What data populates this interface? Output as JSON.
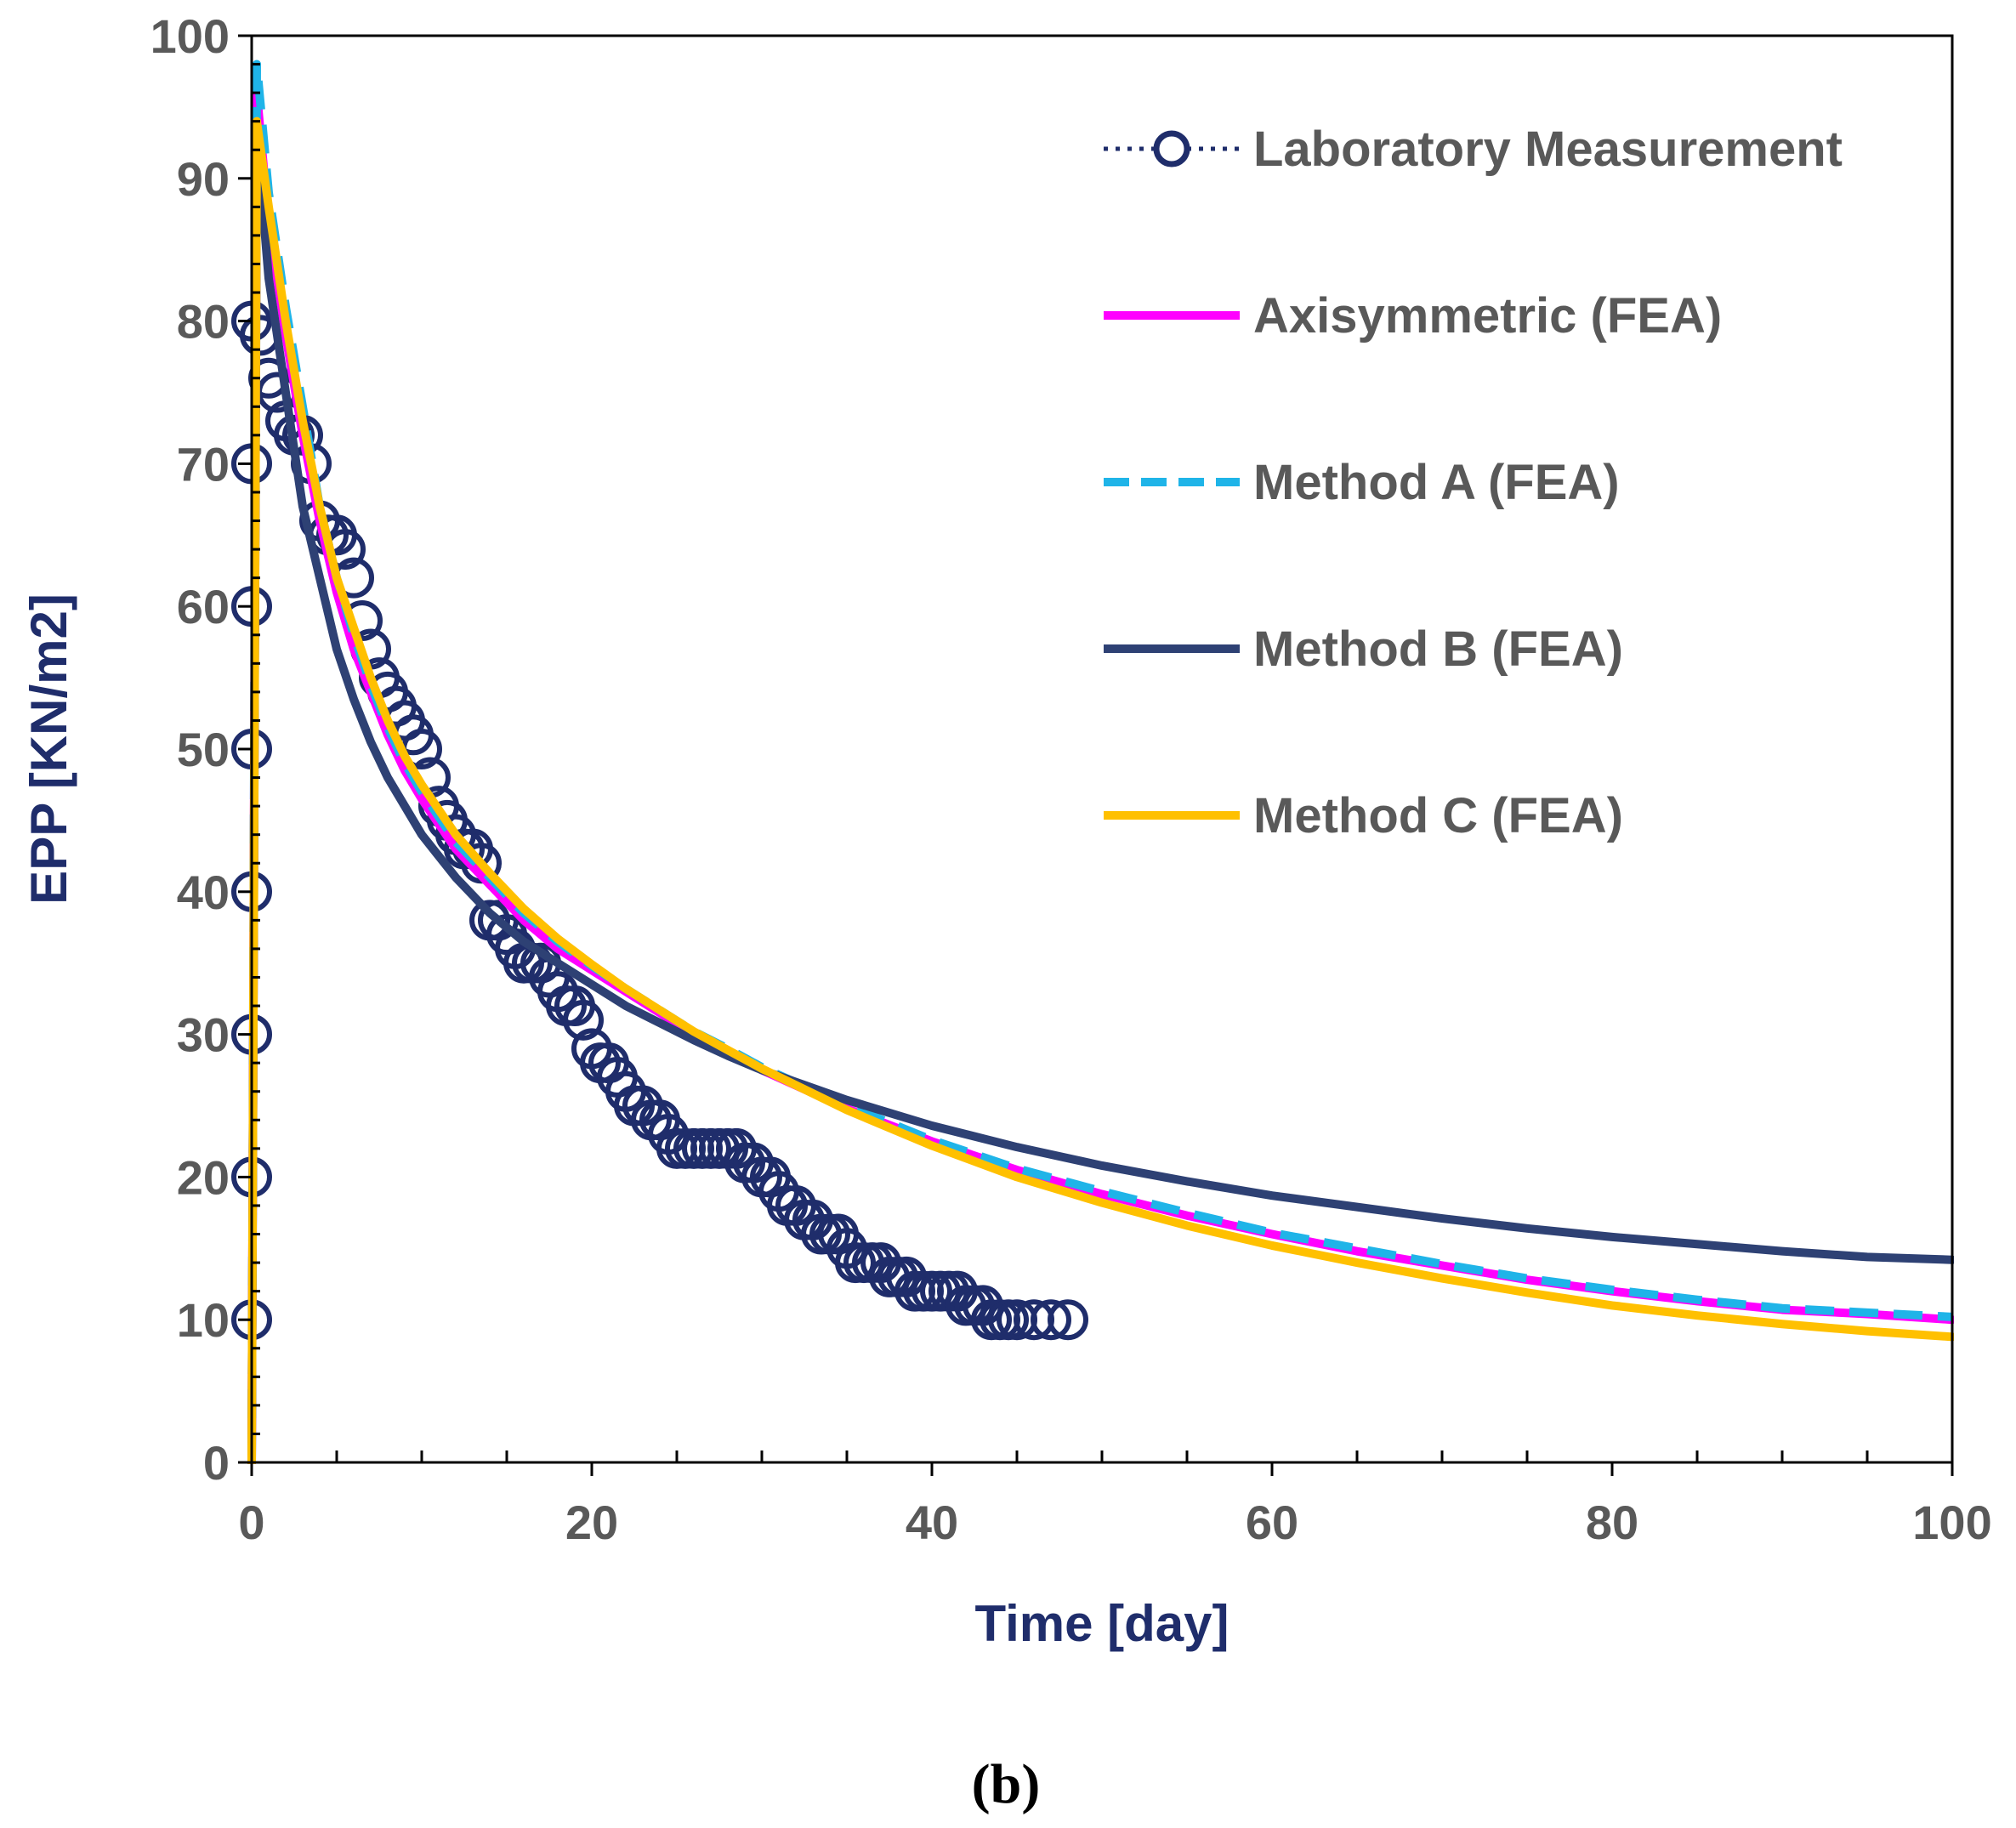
{
  "chart_data": {
    "type": "line",
    "title": "",
    "xlabel": "Time [day]",
    "ylabel": "EPP [KN/m2]",
    "xlim": [
      0,
      100
    ],
    "ylim": [
      0,
      100
    ],
    "xticks": [
      0,
      20,
      40,
      60,
      80,
      100
    ],
    "yticks": [
      0,
      10,
      20,
      30,
      40,
      50,
      60,
      70,
      80,
      90,
      100
    ],
    "grid": false,
    "legend_position": "top-right",
    "caption": "(b)",
    "series": [
      {
        "name": "Laboratory Measurement",
        "style": "dotted-circle-markers",
        "color": "#1f2d6b",
        "x": [
          0,
          0,
          0,
          0,
          0,
          0,
          0,
          0,
          0.5,
          1,
          1.5,
          2,
          2.5,
          3,
          3.5,
          4,
          4.5,
          5,
          5.5,
          6,
          6.5,
          7,
          7.5,
          8,
          8.5,
          9,
          9.5,
          10,
          10.5,
          11,
          11.5,
          12,
          12.5,
          13,
          13.5,
          14,
          14.5,
          15,
          15.5,
          16,
          16.5,
          17,
          17.5,
          18,
          18.5,
          19,
          19.5,
          20,
          20.5,
          21,
          21.5,
          22,
          22.5,
          23,
          23.5,
          24,
          24.5,
          25,
          25.5,
          26,
          26.5,
          27,
          27.5,
          28,
          28.5,
          29,
          29.5,
          30,
          30.5,
          31,
          31.5,
          32,
          32.5,
          33,
          33.5,
          34,
          34.5,
          35,
          35.5,
          36,
          36.5,
          37,
          37.5,
          38,
          38.5,
          39,
          39.5,
          40,
          40.5,
          41,
          41.5,
          42,
          42.5,
          43,
          43.5,
          44,
          44.5,
          45,
          46,
          47,
          48
        ],
        "y": [
          80,
          70,
          60,
          50,
          40,
          30,
          20,
          10,
          79,
          76,
          75,
          73,
          72,
          72,
          70,
          66,
          65,
          65,
          64,
          62,
          59,
          57,
          55,
          54,
          53,
          52,
          51,
          50,
          48,
          46,
          45,
          44,
          43,
          43,
          42,
          38,
          38,
          37,
          36,
          35,
          35,
          35,
          34,
          33,
          32,
          32,
          31,
          29,
          28,
          28,
          27,
          26,
          25,
          25,
          24,
          24,
          23,
          22,
          22,
          22,
          22,
          22,
          22,
          22,
          22,
          21,
          21,
          20,
          20,
          19,
          18,
          18,
          17,
          17,
          16,
          16,
          16,
          15,
          14,
          14,
          14,
          14,
          13,
          13,
          13,
          12,
          12,
          12,
          12,
          12,
          12,
          11,
          11,
          11,
          10,
          10,
          10,
          10,
          10,
          10,
          10
        ]
      },
      {
        "name": "Axisymmetric (FEA)",
        "style": "solid",
        "color": "#ff00ff",
        "x": [
          0,
          0.3,
          1,
          2,
          3,
          4,
          5,
          6,
          7,
          8,
          9,
          10,
          12,
          14,
          16,
          18,
          20,
          22,
          24,
          26,
          28,
          30,
          35,
          40,
          45,
          50,
          55,
          60,
          65,
          70,
          75,
          80,
          85,
          90,
          95,
          100
        ],
        "y": [
          0,
          96,
          87,
          79,
          72,
          66,
          61,
          57,
          54,
          51,
          48.5,
          46.5,
          43,
          40.5,
          38,
          36,
          34.5,
          33,
          31.5,
          30,
          28.8,
          27.5,
          24.8,
          22.5,
          20.5,
          18.8,
          17.3,
          16,
          14.8,
          13.8,
          12.8,
          12,
          11.3,
          10.7,
          10.4,
          10
        ]
      },
      {
        "name": "Method A (FEA)",
        "style": "dashed",
        "color": "#1fb4e8",
        "x": [
          0,
          0.3,
          1,
          2,
          3,
          4,
          5,
          6,
          7,
          8,
          9,
          10,
          12,
          14,
          16,
          18,
          20,
          22,
          24,
          26,
          28,
          30,
          35,
          40,
          45,
          50,
          55,
          60,
          65,
          70,
          75,
          80,
          85,
          90,
          95,
          100
        ],
        "y": [
          0,
          98,
          89,
          81,
          74,
          67,
          62,
          58,
          54.5,
          51.5,
          49,
          47,
          43.5,
          41,
          38.5,
          36.5,
          34.8,
          33.2,
          31.7,
          30.2,
          29,
          27.7,
          25,
          22.6,
          20.6,
          19,
          17.5,
          16.1,
          15,
          13.9,
          12.9,
          12.1,
          11.4,
          10.8,
          10.5,
          10.2
        ]
      },
      {
        "name": "Method B (FEA)",
        "style": "solid",
        "color": "#2e4174",
        "x": [
          0,
          0.3,
          1,
          2,
          3,
          4,
          5,
          6,
          7,
          8,
          9,
          10,
          12,
          14,
          16,
          18,
          20,
          22,
          24,
          26,
          28,
          30,
          35,
          40,
          45,
          50,
          55,
          60,
          65,
          70,
          75,
          80,
          85,
          90,
          95,
          100
        ],
        "y": [
          0,
          93,
          83,
          75,
          67,
          62,
          57,
          53.5,
          50.5,
          48,
          46,
          44,
          41,
          38.5,
          36.5,
          35,
          33.5,
          32,
          30.8,
          29.6,
          28.5,
          27.5,
          25.4,
          23.6,
          22.1,
          20.8,
          19.7,
          18.7,
          17.9,
          17.1,
          16.4,
          15.8,
          15.3,
          14.8,
          14.4,
          14.2
        ]
      },
      {
        "name": "Method C (FEA)",
        "style": "solid",
        "color": "#ffc000",
        "x": [
          0,
          0.3,
          1,
          2,
          3,
          4,
          5,
          6,
          7,
          8,
          9,
          10,
          12,
          14,
          16,
          18,
          20,
          22,
          24,
          26,
          28,
          30,
          35,
          40,
          45,
          50,
          55,
          60,
          65,
          70,
          75,
          80,
          85,
          90,
          95,
          100
        ],
        "y": [
          0,
          94,
          88,
          80,
          73,
          67,
          62,
          58.5,
          55,
          52,
          49.5,
          47.5,
          44,
          41.3,
          38.8,
          36.7,
          34.9,
          33.2,
          31.7,
          30.2,
          28.9,
          27.6,
          24.7,
          22.2,
          20,
          18.2,
          16.6,
          15.2,
          14,
          12.9,
          11.9,
          11,
          10.3,
          9.7,
          9.2,
          8.8
        ]
      }
    ]
  }
}
